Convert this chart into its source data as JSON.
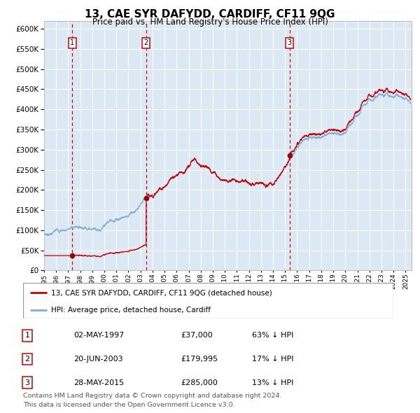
{
  "title": "13, CAE SYR DAFYDD, CARDIFF, CF11 9QG",
  "subtitle": "Price paid vs. HM Land Registry's House Price Index (HPI)",
  "hpi_label": "HPI: Average price, detached house, Cardiff",
  "price_label": "13, CAE SYR DAFYDD, CARDIFF, CF11 9QG (detached house)",
  "legend_note": "Contains HM Land Registry data © Crown copyright and database right 2024.\nThis data is licensed under the Open Government Licence v3.0.",
  "sales": [
    {
      "num": 1,
      "date": "02-MAY-1997",
      "price": 37000,
      "pct": "63%",
      "x_year": 1997.34
    },
    {
      "num": 2,
      "date": "20-JUN-2003",
      "price": 179995,
      "x_year": 2003.47,
      "pct": "17%"
    },
    {
      "num": 3,
      "date": "28-MAY-2015",
      "price": 285000,
      "x_year": 2015.38,
      "pct": "13%"
    }
  ],
  "table_rows": [
    [
      "1",
      "02-MAY-1997",
      "£37,000",
      "63% ↓ HPI"
    ],
    [
      "2",
      "20-JUN-2003",
      "£179,995",
      "17% ↓ HPI"
    ],
    [
      "3",
      "28-MAY-2015",
      "£285,000",
      "13% ↓ HPI"
    ]
  ],
  "ylim": [
    0,
    620000
  ],
  "xlim_start": 1995.0,
  "xlim_end": 2025.5,
  "price_line_color": "#cc0000",
  "hpi_line_color": "#7bafd4",
  "background_color": "#dce9f5",
  "grid_color": "#ffffff",
  "dashed_line_color": "#cc0000",
  "marker_color": "#990000",
  "title_fontsize": 11,
  "subtitle_fontsize": 9
}
